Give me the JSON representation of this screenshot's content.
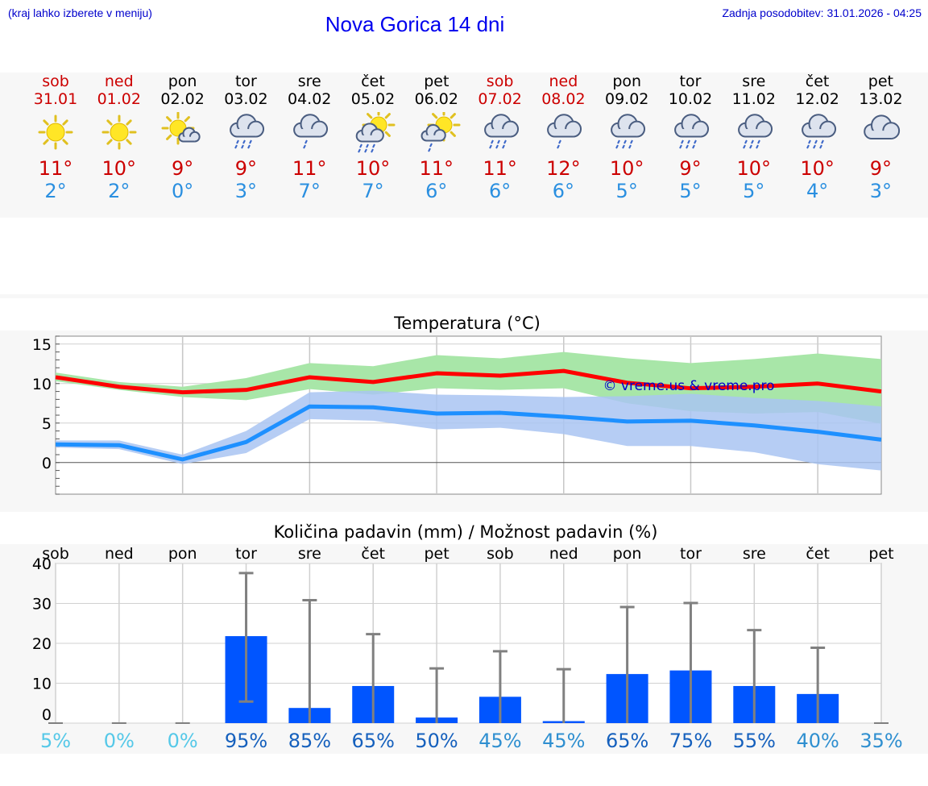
{
  "header": {
    "hint": "(kraj lahko izberete v meniju)",
    "title": "Nova Gorica 14 dni",
    "updated": "Zadnja posodobitev: 31.01.2026 - 04:25"
  },
  "days": [
    {
      "name": "sob",
      "date": "31.01",
      "weekend": true,
      "icon": "sun-icon",
      "tmax": "11°",
      "tmin": "2°"
    },
    {
      "name": "ned",
      "date": "01.02",
      "weekend": true,
      "icon": "sun-icon",
      "tmax": "10°",
      "tmin": "2°"
    },
    {
      "name": "pon",
      "date": "02.02",
      "weekend": false,
      "icon": "sun-cloud-icon",
      "tmax": "9°",
      "tmin": "0°"
    },
    {
      "name": "tor",
      "date": "03.02",
      "weekend": false,
      "icon": "rain-cloud-icon",
      "tmax": "9°",
      "tmin": "3°"
    },
    {
      "name": "sre",
      "date": "04.02",
      "weekend": false,
      "icon": "light-rain-cloud-icon",
      "tmax": "11°",
      "tmin": "7°"
    },
    {
      "name": "čet",
      "date": "05.02",
      "weekend": false,
      "icon": "sun-rain-cloud-icon",
      "tmax": "10°",
      "tmin": "7°"
    },
    {
      "name": "pet",
      "date": "06.02",
      "weekend": false,
      "icon": "sun-light-rain-icon",
      "tmax": "11°",
      "tmin": "6°"
    },
    {
      "name": "sob",
      "date": "07.02",
      "weekend": true,
      "icon": "rain-cloud-icon",
      "tmax": "11°",
      "tmin": "6°"
    },
    {
      "name": "ned",
      "date": "08.02",
      "weekend": true,
      "icon": "light-rain-cloud-icon",
      "tmax": "12°",
      "tmin": "6°"
    },
    {
      "name": "pon",
      "date": "09.02",
      "weekend": false,
      "icon": "rain-cloud-icon",
      "tmax": "10°",
      "tmin": "5°"
    },
    {
      "name": "tor",
      "date": "10.02",
      "weekend": false,
      "icon": "rain-cloud-icon",
      "tmax": "9°",
      "tmin": "5°"
    },
    {
      "name": "sre",
      "date": "11.02",
      "weekend": false,
      "icon": "rain-cloud-icon",
      "tmax": "10°",
      "tmin": "5°"
    },
    {
      "name": "čet",
      "date": "12.02",
      "weekend": false,
      "icon": "rain-cloud-icon",
      "tmax": "10°",
      "tmin": "4°"
    },
    {
      "name": "pet",
      "date": "13.02",
      "weekend": false,
      "icon": "cloud-icon",
      "tmax": "9°",
      "tmin": "3°"
    }
  ],
  "colors": {
    "max_line": "#ff0000",
    "min_line": "#1e90ff",
    "max_band": "#a8e6a8",
    "min_band": "#a9c4f2",
    "bar": "#0055ff",
    "error": "#808080",
    "watermark": "#0000cc"
  },
  "chart_data": [
    {
      "type": "line",
      "title": "Temperatura (°C)",
      "watermark": "© vreme.us & vreme.pro",
      "ylim": [
        -4,
        16
      ],
      "yticks": [
        0,
        5,
        10,
        15
      ],
      "x": [
        0,
        1,
        2,
        3,
        4,
        5,
        6,
        7,
        8,
        9,
        10,
        11,
        12,
        13
      ],
      "series": [
        {
          "name": "max",
          "values": [
            10.8,
            9.6,
            8.9,
            9.2,
            10.8,
            10.2,
            11.3,
            11.0,
            11.6,
            10.1,
            9.4,
            9.6,
            10.0,
            9.0
          ],
          "band_low": [
            10.3,
            9.2,
            8.3,
            7.9,
            9.3,
            8.6,
            9.4,
            9.2,
            9.4,
            7.5,
            6.5,
            6.2,
            6.4,
            4.9
          ],
          "band_high": [
            11.4,
            10.2,
            9.6,
            10.7,
            12.6,
            12.2,
            13.6,
            13.2,
            14.0,
            13.2,
            12.6,
            13.1,
            13.8,
            13.1
          ]
        },
        {
          "name": "min",
          "values": [
            2.3,
            2.2,
            0.4,
            2.6,
            7.1,
            7.0,
            6.2,
            6.3,
            5.8,
            5.2,
            5.3,
            4.7,
            3.9,
            2.9
          ],
          "band_low": [
            1.9,
            1.7,
            -0.2,
            1.2,
            5.5,
            5.3,
            4.2,
            4.4,
            3.6,
            2.1,
            2.1,
            1.3,
            -0.2,
            -1.0
          ],
          "band_high": [
            2.8,
            2.8,
            1.0,
            4.0,
            8.9,
            9.1,
            8.6,
            8.5,
            8.3,
            8.4,
            8.7,
            8.2,
            7.8,
            7.1
          ]
        }
      ]
    },
    {
      "type": "bar",
      "title": "Količina padavin (mm) / Možnost padavin (%)",
      "ylim": [
        0,
        40
      ],
      "yticks": [
        0,
        10,
        20,
        30,
        40
      ],
      "categories": [
        "sob",
        "ned",
        "pon",
        "tor",
        "sre",
        "čet",
        "pet",
        "sob",
        "ned",
        "pon",
        "tor",
        "sre",
        "čet",
        "pet"
      ],
      "values": [
        0.0,
        0.0,
        0.0,
        21.8,
        3.8,
        9.3,
        1.4,
        6.6,
        0.5,
        12.3,
        13.2,
        9.3,
        7.3,
        0.0
      ],
      "err_low": [
        0.0,
        0.0,
        0.0,
        5.4,
        0.0,
        0.0,
        0.0,
        0.0,
        0.0,
        0.0,
        0.0,
        0.0,
        0.0,
        0.0
      ],
      "err_high": [
        0.0,
        0.2,
        0.2,
        37.6,
        30.8,
        22.3,
        13.7,
        18.0,
        13.5,
        29.1,
        30.1,
        23.3,
        18.9,
        0.2
      ],
      "probability": [
        "5%",
        "0%",
        "0%",
        "95%",
        "85%",
        "65%",
        "50%",
        "45%",
        "45%",
        "65%",
        "75%",
        "55%",
        "40%",
        "35%"
      ]
    }
  ]
}
